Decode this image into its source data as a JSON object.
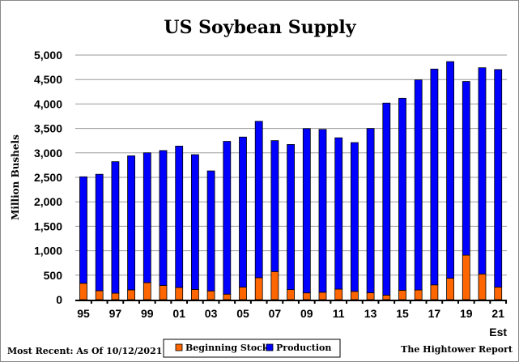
{
  "chart_data": {
    "type": "bar",
    "stacked": true,
    "title": "US Soybean Supply",
    "ylabel": "Million Bushels",
    "xlabel": "",
    "ylim": [
      0,
      5000
    ],
    "yticks": [
      "0",
      "500",
      "1,000",
      "1,500",
      "2,000",
      "2,500",
      "3,000",
      "3,500",
      "4,000",
      "4,500",
      "5,000"
    ],
    "ytick_values": [
      0,
      500,
      1000,
      1500,
      2000,
      2500,
      3000,
      3500,
      4000,
      4500,
      5000
    ],
    "grid": true,
    "categories": [
      "95",
      "96",
      "97",
      "98",
      "99",
      "00",
      "01",
      "02",
      "03",
      "04",
      "05",
      "06",
      "07",
      "08",
      "09",
      "10",
      "11",
      "12",
      "13",
      "14",
      "15",
      "16",
      "17",
      "18",
      "19",
      "20",
      "21"
    ],
    "xtick_labels_shown": [
      "95",
      "97",
      "99",
      "01",
      "03",
      "05",
      "07",
      "09",
      "11",
      "13",
      "15",
      "17",
      "19",
      "21"
    ],
    "est_label": "Est",
    "series": [
      {
        "name": "Beginning Stocks",
        "color": "#ff6600",
        "values": [
          335,
          183,
          132,
          200,
          348,
          290,
          248,
          208,
          178,
          112,
          256,
          449,
          574,
          205,
          138,
          151,
          215,
          169,
          141,
          92,
          191,
          197,
          302,
          438,
          909,
          525,
          256
        ]
      },
      {
        "name": "Production",
        "color": "#0000ff",
        "values": [
          2177,
          2380,
          2689,
          2741,
          2654,
          2758,
          2891,
          2756,
          2454,
          3124,
          3068,
          3197,
          2677,
          2967,
          3359,
          3329,
          3094,
          3042,
          3358,
          3927,
          3926,
          4296,
          4412,
          4428,
          3552,
          4216,
          4448
        ]
      }
    ],
    "legend": "bottom-center"
  },
  "footer": {
    "left": "Most Recent: As Of 10/12/2021",
    "right": "The Hightower Report"
  }
}
